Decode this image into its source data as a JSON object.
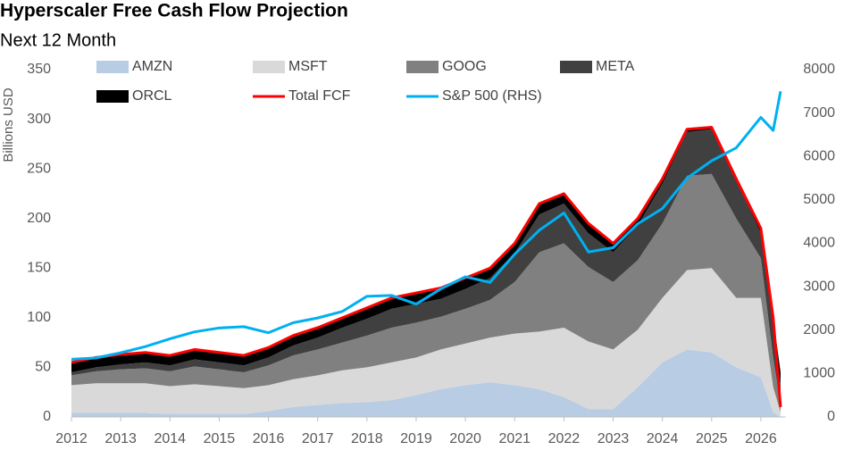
{
  "chart_data": {
    "type": "area",
    "title": "Hyperscaler Free Cash Flow Projection",
    "subtitle": "Next 12 Month",
    "y_label": "Billions USD",
    "x": [
      2012,
      2012.5,
      2013,
      2013.5,
      2014,
      2014.5,
      2015,
      2015.5,
      2016,
      2016.5,
      2017,
      2017.5,
      2018,
      2018.5,
      2019,
      2019.5,
      2020,
      2020.5,
      2021,
      2021.5,
      2022,
      2022.5,
      2023,
      2023.5,
      2024,
      2024.5,
      2025,
      2025.5,
      2026,
      2026.25,
      2026.4
    ],
    "xlim": [
      2012,
      2026.5
    ],
    "xticks": [
      2012,
      2013,
      2014,
      2015,
      2016,
      2017,
      2018,
      2019,
      2020,
      2021,
      2022,
      2023,
      2024,
      2025,
      2026
    ],
    "ylim": [
      0,
      350
    ],
    "yticks": [
      0,
      50,
      100,
      150,
      200,
      250,
      300,
      350
    ],
    "y2lim": [
      0,
      8000
    ],
    "y2ticks": [
      0,
      1000,
      2000,
      3000,
      4000,
      5000,
      6000,
      7000,
      8000
    ],
    "grid": false,
    "series": [
      {
        "name": "AMZN",
        "type": "area",
        "color": "#b8cce4",
        "values": [
          4,
          4,
          4,
          4,
          3,
          3,
          3,
          3,
          6,
          10,
          12,
          14,
          15,
          17,
          22,
          28,
          32,
          35,
          32,
          28,
          20,
          8,
          8,
          30,
          55,
          68,
          65,
          50,
          40,
          5,
          0
        ]
      },
      {
        "name": "MSFT",
        "type": "area",
        "color": "#d9d9d9",
        "values": [
          28,
          30,
          30,
          30,
          28,
          30,
          28,
          26,
          26,
          28,
          30,
          33,
          35,
          38,
          38,
          40,
          42,
          45,
          52,
          58,
          70,
          68,
          60,
          58,
          65,
          80,
          85,
          70,
          80,
          25,
          5
        ]
      },
      {
        "name": "GOOG",
        "type": "area",
        "color": "#808080",
        "values": [
          10,
          12,
          14,
          15,
          15,
          18,
          17,
          16,
          20,
          24,
          26,
          28,
          32,
          35,
          35,
          33,
          35,
          38,
          52,
          80,
          85,
          75,
          68,
          70,
          75,
          95,
          95,
          80,
          40,
          30,
          8
        ]
      },
      {
        "name": "META",
        "type": "area",
        "color": "#404040",
        "values": [
          3,
          4,
          5,
          6,
          6,
          7,
          7,
          7,
          8,
          10,
          12,
          15,
          17,
          19,
          19,
          18,
          20,
          22,
          29,
          38,
          40,
          34,
          30,
          35,
          40,
          44,
          45,
          38,
          25,
          30,
          20
        ]
      },
      {
        "name": "ORCL",
        "type": "area",
        "color": "#000000",
        "values": [
          10,
          10,
          10,
          10,
          10,
          10,
          10,
          10,
          10,
          10,
          10,
          10,
          11,
          11,
          11,
          11,
          11,
          10,
          10,
          11,
          10,
          10,
          9,
          7,
          5,
          3,
          2,
          2,
          5,
          10,
          12
        ]
      },
      {
        "name": "Total FCF",
        "type": "line",
        "color": "#ff0000",
        "values": [
          55,
          60,
          63,
          65,
          62,
          68,
          65,
          62,
          70,
          82,
          90,
          100,
          110,
          120,
          125,
          130,
          140,
          150,
          175,
          215,
          225,
          195,
          175,
          200,
          240,
          290,
          292,
          240,
          190,
          100,
          10
        ]
      },
      {
        "name": "S&P 500 (RHS)",
        "type": "line",
        "axis": "y2",
        "color": "#00b0f0",
        "values": [
          1330,
          1360,
          1480,
          1620,
          1800,
          1960,
          2050,
          2080,
          1940,
          2170,
          2280,
          2430,
          2780,
          2800,
          2600,
          2950,
          3230,
          3100,
          3750,
          4300,
          4700,
          3800,
          3900,
          4450,
          4800,
          5500,
          5900,
          6200,
          6900,
          6600,
          7500
        ]
      }
    ]
  }
}
